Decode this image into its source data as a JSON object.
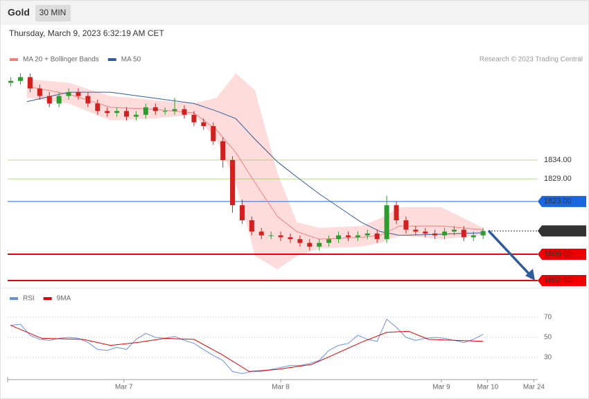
{
  "header": {
    "title": "Gold",
    "interval": "30 MIN",
    "timestamp": "Thursday, March 9, 2023 6:32:19 AM CET"
  },
  "chart_data": [
    {
      "type": "candlestick",
      "credit": "Research © 2023 Trading Central",
      "up_color": "#2e9b2e",
      "down_color": "#d12020",
      "x": [
        1,
        4,
        7,
        10,
        13,
        16,
        19,
        22,
        25,
        28,
        31,
        34,
        37,
        40,
        43,
        46,
        49,
        52,
        55,
        58,
        61,
        64,
        67,
        70,
        73,
        76,
        79,
        82,
        85,
        88,
        91,
        94,
        97,
        100,
        103,
        106,
        109,
        112,
        115,
        118,
        121,
        124,
        127,
        130,
        133,
        136,
        139,
        142,
        145,
        148
      ],
      "open": [
        1854.5,
        1855,
        1856,
        1853,
        1851,
        1849,
        1851,
        1852,
        1851,
        1849,
        1847,
        1846.5,
        1847,
        1845.5,
        1846,
        1848,
        1847,
        1847,
        1847.5,
        1846,
        1844,
        1843,
        1839,
        1834,
        1822,
        1818,
        1815,
        1814,
        1814,
        1813.5,
        1813,
        1812,
        1811,
        1812,
        1813,
        1814,
        1813.5,
        1814,
        1814.5,
        1813,
        1822,
        1818,
        1815.5,
        1815,
        1814.5,
        1814,
        1815,
        1815.5,
        1813.5,
        1814
      ],
      "high": [
        1856,
        1857,
        1857,
        1854,
        1852,
        1852,
        1853,
        1853,
        1852,
        1850,
        1848,
        1848,
        1848,
        1847,
        1849,
        1849,
        1848,
        1850.5,
        1848.5,
        1847,
        1845,
        1844,
        1840,
        1835,
        1823.5,
        1819,
        1816,
        1815,
        1815,
        1814.5,
        1814,
        1813,
        1813,
        1814,
        1815,
        1815,
        1815,
        1815.5,
        1815.5,
        1824.5,
        1823,
        1819,
        1816.5,
        1816,
        1815.5,
        1816,
        1816.5,
        1816.5,
        1815,
        1816
      ],
      "low": [
        1853.5,
        1854,
        1852,
        1850,
        1848,
        1848,
        1850,
        1850,
        1848,
        1846,
        1845.5,
        1845.5,
        1844.5,
        1844.5,
        1845,
        1846,
        1846,
        1846,
        1845,
        1843,
        1842,
        1838,
        1832,
        1820,
        1817,
        1814,
        1813,
        1813,
        1812.5,
        1812,
        1811,
        1810,
        1810,
        1811,
        1812,
        1812.5,
        1812.5,
        1813,
        1812,
        1812,
        1817,
        1814.5,
        1814,
        1813.5,
        1813,
        1813,
        1814,
        1812.5,
        1812.5,
        1813
      ],
      "close": [
        1855,
        1856,
        1853,
        1851,
        1849,
        1851,
        1852,
        1851,
        1849,
        1847,
        1846.5,
        1847,
        1845.5,
        1846,
        1848,
        1847,
        1847,
        1847.5,
        1846,
        1844,
        1843,
        1839,
        1834,
        1822,
        1818,
        1815,
        1814,
        1814,
        1813.5,
        1813,
        1812,
        1811,
        1812,
        1813,
        1814,
        1813.5,
        1814,
        1814.5,
        1813,
        1822,
        1818,
        1815.5,
        1815,
        1814.5,
        1814,
        1815,
        1815.5,
        1813.5,
        1814,
        1815.18
      ],
      "xlim": [
        0,
        165
      ],
      "ylim": [
        1800,
        1860
      ],
      "bands": {
        "name": "MA 20 + Bollinger Bands",
        "color": "#f08080",
        "fill": "#ffdcdc",
        "x": [
          6,
          19,
          32,
          45,
          58,
          65,
          71,
          77,
          84,
          90,
          97,
          110,
          116,
          122,
          135,
          148
        ],
        "middle": [
          1853.5,
          1851.5,
          1848,
          1847.5,
          1846.5,
          1842,
          1836,
          1828,
          1819,
          1815,
          1813,
          1813.5,
          1814,
          1816.5,
          1816.5,
          1815.5
        ],
        "upper": [
          1855.5,
          1854.5,
          1851,
          1850,
          1849,
          1850.5,
          1857,
          1852.5,
          1830.5,
          1817.5,
          1816,
          1816.5,
          1818.5,
          1821.5,
          1821.5,
          1816
        ],
        "lower": [
          1850.5,
          1849,
          1844.5,
          1845,
          1846,
          1839.5,
          1828,
          1808.5,
          1805,
          1808.5,
          1810.5,
          1811,
          1812,
          1814,
          1813,
          1814
        ]
      },
      "series": [
        {
          "name": "MA 50",
          "color": "#2f5b9b",
          "x": [
            6,
            19,
            32,
            45,
            58,
            65,
            71,
            77,
            84,
            90,
            97,
            110,
            116,
            122,
            135,
            148
          ],
          "values": [
            1849.5,
            1852,
            1852,
            1850.5,
            1849,
            1847,
            1845,
            1839.5,
            1833.5,
            1829.5,
            1825,
            1817.5,
            1815,
            1814,
            1814.3,
            1814.7
          ]
        }
      ],
      "levels": [
        {
          "value": 1834,
          "label": "1834.00",
          "color": "#8bc34a",
          "boxed": false
        },
        {
          "value": 1829,
          "label": "1829.00",
          "color": "#8bc34a",
          "boxed": false
        },
        {
          "value": 1823,
          "label": "1823.00",
          "color": "#1a66e0",
          "boxed": true
        },
        {
          "value": 1815.18,
          "color": "#333333",
          "boxed": true
        },
        {
          "value": 1809,
          "label": "1809.00",
          "color": "#ee0000",
          "boxed": true
        },
        {
          "value": 1802,
          "label": "1802.00",
          "color": "#ee0000",
          "boxed": true
        }
      ]
    },
    {
      "type": "line",
      "series": [
        {
          "name": "RSI",
          "color": "#6b8fe0",
          "x": [
            1,
            4,
            7,
            10,
            13,
            16,
            19,
            22,
            25,
            28,
            31,
            34,
            37,
            40,
            43,
            46,
            49,
            52,
            55,
            58,
            61,
            64,
            67,
            70,
            73,
            76,
            79,
            82,
            85,
            88,
            91,
            94,
            97,
            100,
            103,
            106,
            109,
            112,
            115,
            118,
            121,
            124,
            127,
            130,
            133,
            136,
            139,
            142,
            145,
            148
          ],
          "values": [
            62,
            63,
            52,
            48,
            47,
            49,
            50,
            49,
            45,
            38,
            37,
            40,
            38,
            48,
            54,
            50,
            49,
            51,
            47,
            44,
            38,
            32,
            27,
            16,
            14,
            16,
            16,
            18,
            20,
            22,
            22,
            24,
            27,
            37,
            42,
            44,
            52,
            48,
            46,
            68,
            60,
            50,
            47,
            49,
            50,
            49,
            47,
            45,
            48,
            53
          ]
        },
        {
          "name": "9MA",
          "color": "#e00000",
          "x": [
            0.9,
            10.6,
            23.5,
            32,
            40.7,
            49,
            58,
            66.6,
            75.2,
            83.8,
            94.6,
            101,
            110,
            118,
            124.8,
            131,
            148
          ],
          "values": [
            62,
            49,
            48,
            42,
            45,
            49,
            48,
            33,
            16,
            18,
            23,
            32,
            45,
            55,
            56,
            48,
            46
          ]
        }
      ],
      "xlim": [
        0,
        165
      ],
      "ylim": [
        10,
        90
      ],
      "yticks": [
        30,
        50,
        70
      ],
      "xticks": [
        {
          "value": 36.2,
          "label": "Mar 7"
        },
        {
          "value": 85,
          "label": "Mar 8"
        },
        {
          "value": 135,
          "label": "Mar 9"
        },
        {
          "value": 149.4,
          "label": "Mar 10"
        },
        {
          "value": 163.8,
          "label": "Mar 24"
        }
      ]
    }
  ]
}
